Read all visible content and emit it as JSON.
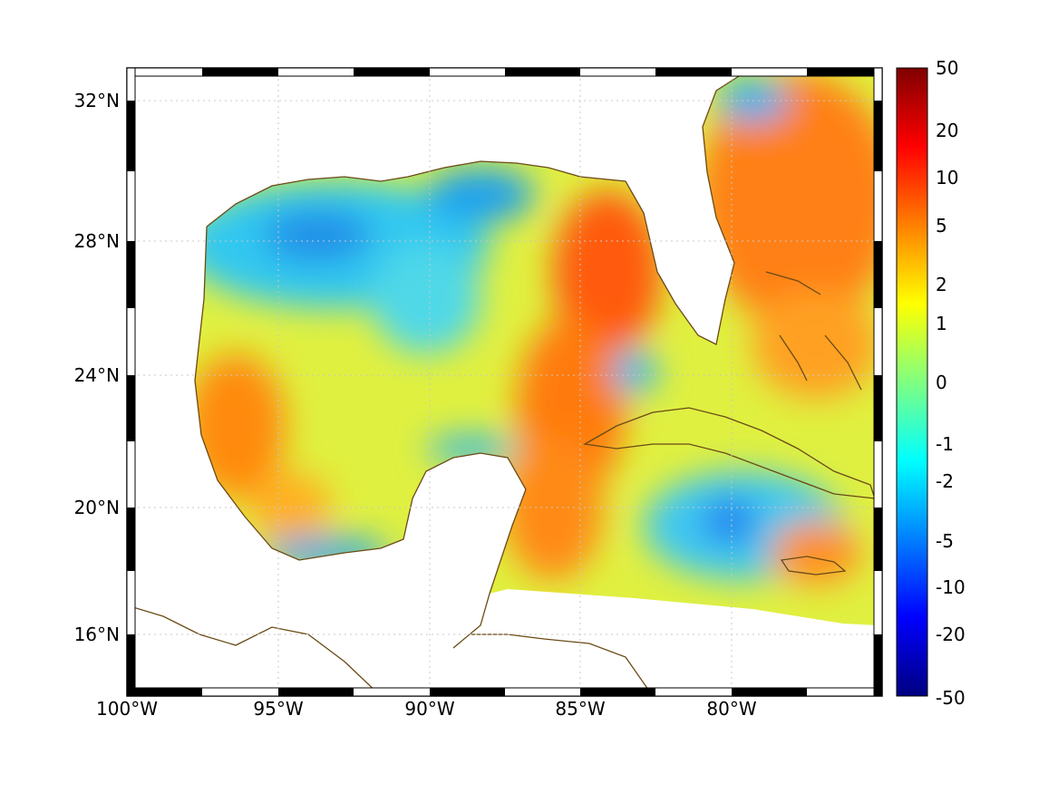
{
  "map": {
    "lon_range": [
      -100,
      -75
    ],
    "lat_range": [
      14.2,
      32.9
    ],
    "grid": true,
    "frame": "black-white-checkered",
    "colormap": "jet",
    "coastline_color": "#6b4a16",
    "land_color": "#ffffff",
    "missing_color": "#ffffff",
    "lon_ticks": [
      {
        "value": -100,
        "label": "100°W"
      },
      {
        "value": -95,
        "label": "95°W"
      },
      {
        "value": -90,
        "label": "90°W"
      },
      {
        "value": -85,
        "label": "85°W"
      },
      {
        "value": -80,
        "label": "80°W"
      }
    ],
    "lat_ticks": [
      {
        "value": 32,
        "label": "32°N"
      },
      {
        "value": 28,
        "label": "28°N"
      },
      {
        "value": 24,
        "label": "24°N"
      },
      {
        "value": 20,
        "label": "20°N"
      },
      {
        "value": 16,
        "label": "16°N"
      }
    ]
  },
  "colorbar": {
    "scale": "symmetric-nonlinear",
    "ticks": [
      {
        "value": 50,
        "label": "50"
      },
      {
        "value": 20,
        "label": "20"
      },
      {
        "value": 10,
        "label": "10"
      },
      {
        "value": 5,
        "label": "5"
      },
      {
        "value": 2,
        "label": "2"
      },
      {
        "value": 1,
        "label": "1"
      },
      {
        "value": 0,
        "label": "0"
      },
      {
        "value": -1,
        "label": "-1"
      },
      {
        "value": -2,
        "label": "-2"
      },
      {
        "value": -5,
        "label": "-5"
      },
      {
        "value": -10,
        "label": "-10"
      },
      {
        "value": -20,
        "label": "-20"
      },
      {
        "value": -50,
        "label": "-50"
      }
    ]
  }
}
